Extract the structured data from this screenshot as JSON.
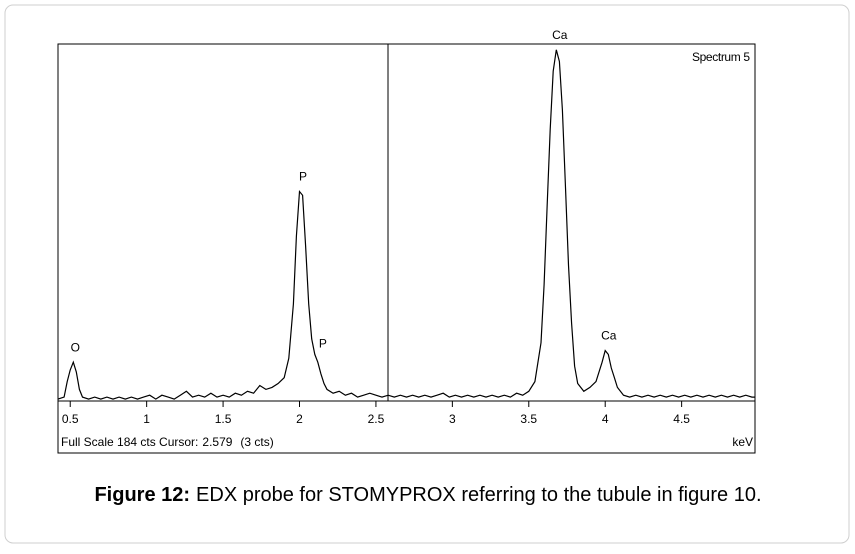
{
  "chart_data": {
    "type": "line",
    "spectrum_name": "Spectrum 5",
    "x_label": "keV",
    "footer": {
      "full_scale": "Full Scale 184 cts Cursor:",
      "cursor": 2.579,
      "cursor_counts": "(3 cts)"
    },
    "cursor": 2.579,
    "xlim": [
      0.42,
      4.98
    ],
    "ylim": [
      0,
      184
    ],
    "xticks": [
      0.5,
      1,
      1.5,
      2,
      2.5,
      3,
      3.5,
      4,
      4.5
    ],
    "color": "#000000",
    "x": [
      0.42,
      0.46,
      0.48,
      0.5,
      0.52,
      0.54,
      0.56,
      0.58,
      0.62,
      0.66,
      0.7,
      0.74,
      0.78,
      0.82,
      0.86,
      0.9,
      0.94,
      0.98,
      1.02,
      1.06,
      1.1,
      1.14,
      1.18,
      1.22,
      1.26,
      1.3,
      1.34,
      1.38,
      1.42,
      1.46,
      1.5,
      1.54,
      1.58,
      1.62,
      1.66,
      1.7,
      1.74,
      1.78,
      1.82,
      1.86,
      1.9,
      1.93,
      1.96,
      1.98,
      2.0,
      2.02,
      2.04,
      2.06,
      2.08,
      2.1,
      2.12,
      2.14,
      2.16,
      2.18,
      2.22,
      2.26,
      2.3,
      2.34,
      2.38,
      2.42,
      2.46,
      2.5,
      2.54,
      2.58,
      2.62,
      2.66,
      2.7,
      2.74,
      2.78,
      2.82,
      2.86,
      2.9,
      2.94,
      2.98,
      3.02,
      3.06,
      3.1,
      3.14,
      3.18,
      3.22,
      3.26,
      3.3,
      3.34,
      3.38,
      3.42,
      3.46,
      3.5,
      3.54,
      3.58,
      3.6,
      3.62,
      3.64,
      3.66,
      3.68,
      3.7,
      3.72,
      3.74,
      3.76,
      3.78,
      3.8,
      3.82,
      3.86,
      3.9,
      3.94,
      3.98,
      4.0,
      4.02,
      4.04,
      4.06,
      4.08,
      4.12,
      4.16,
      4.2,
      4.24,
      4.28,
      4.32,
      4.36,
      4.4,
      4.44,
      4.48,
      4.52,
      4.56,
      4.6,
      4.64,
      4.68,
      4.72,
      4.76,
      4.8,
      4.84,
      4.88,
      4.92,
      4.96,
      4.98
    ],
    "values": [
      1,
      2,
      10,
      16,
      20,
      15,
      6,
      2,
      1,
      2,
      1,
      2,
      1,
      2,
      1,
      2,
      1,
      2,
      3,
      1,
      3,
      2,
      1,
      3,
      5,
      2,
      3,
      2,
      4,
      2,
      3,
      2,
      4,
      3,
      5,
      4,
      8,
      6,
      7,
      9,
      12,
      22,
      50,
      85,
      108,
      106,
      80,
      50,
      32,
      24,
      20,
      14,
      9,
      6,
      4,
      5,
      3,
      4,
      2,
      3,
      4,
      3,
      2,
      3,
      2,
      3,
      2,
      3,
      2,
      3,
      2,
      3,
      4,
      2,
      3,
      2,
      3,
      2,
      3,
      2,
      3,
      2,
      3,
      2,
      4,
      3,
      5,
      10,
      30,
      60,
      100,
      140,
      170,
      181,
      175,
      150,
      110,
      70,
      40,
      18,
      9,
      5,
      7,
      10,
      20,
      26,
      24,
      17,
      12,
      7,
      3,
      2,
      3,
      2,
      3,
      2,
      3,
      2,
      3,
      2,
      3,
      2,
      3,
      2,
      3,
      2,
      3,
      2,
      3,
      2,
      3,
      2,
      2
    ],
    "peak_labels": [
      {
        "label": "O",
        "x": 0.52,
        "y": 20
      },
      {
        "label": "P",
        "x": 2.01,
        "y": 108
      },
      {
        "label": "P",
        "x": 2.14,
        "y": 22
      },
      {
        "label": "Ca",
        "x": 3.69,
        "y": 181
      },
      {
        "label": "Ca",
        "x": 4.01,
        "y": 26
      }
    ]
  },
  "caption": {
    "label": "Figure 12:",
    "text": "EDX probe for STOMYPROX referring to the tubule in figure 10."
  }
}
